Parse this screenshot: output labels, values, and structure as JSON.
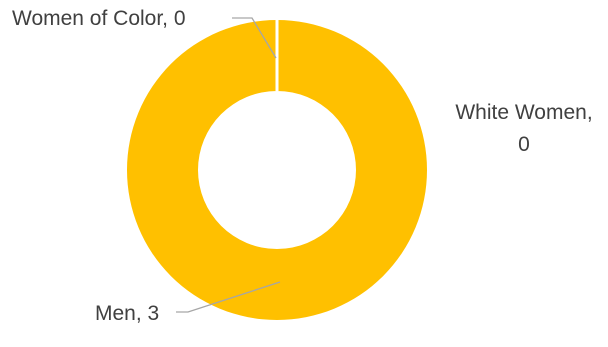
{
  "chart_data": {
    "type": "pie",
    "variant": "donut",
    "categories": [
      "Women of Color",
      "White Women",
      "Men"
    ],
    "values": [
      0,
      0,
      3
    ],
    "colors": [
      "#4472c4",
      "#ed7d31",
      "#ffc000"
    ],
    "labels": {
      "women_of_color": "Women of Color, 0",
      "white_women_line1": "White Women,",
      "white_women_line2": "0",
      "men": "Men, 3"
    },
    "legend": "none"
  }
}
